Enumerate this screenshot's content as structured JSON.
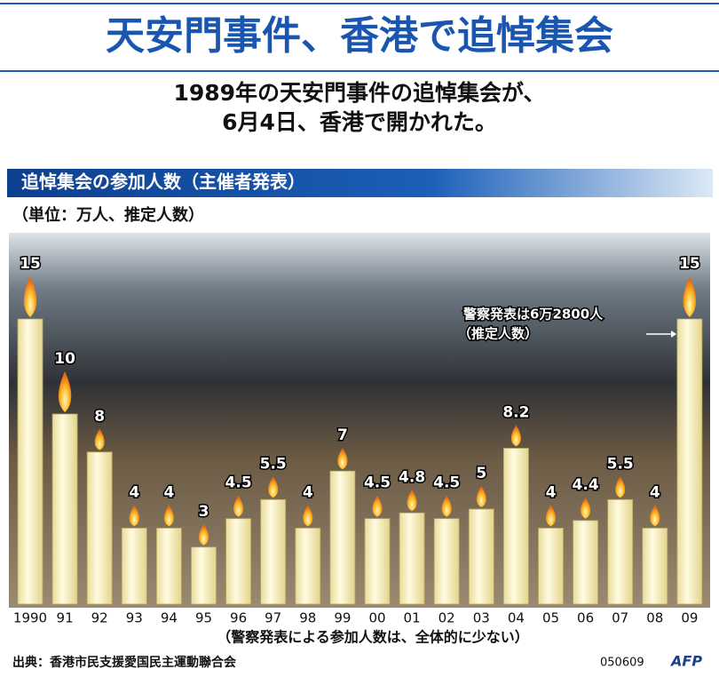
{
  "title": "天安門事件、香港で追悼集会",
  "subtitle": [
    "1989年の天安門事件の追悼集会が、",
    "6月4日、香港で開かれた。"
  ],
  "chart_data": {
    "type": "bar",
    "title": "追悼集会の参加人数（主催者発表）",
    "unit": "（単位：万人、推定人数）",
    "categories": [
      "1990",
      "91",
      "92",
      "93",
      "94",
      "95",
      "96",
      "97",
      "98",
      "99",
      "00",
      "01",
      "02",
      "03",
      "04",
      "05",
      "06",
      "07",
      "08",
      "09"
    ],
    "values": [
      15,
      10,
      8,
      4,
      4,
      3,
      4.5,
      5.5,
      4,
      7,
      4.5,
      4.8,
      4.5,
      5,
      8.2,
      4,
      4.4,
      5.5,
      4,
      15
    ],
    "color": "#fbf3c2",
    "annotation": [
      "警察発表は6万2800人",
      "（推定人数）"
    ],
    "note": "（警察発表による参加人数は、全体的に少ない）"
  },
  "source": "出典：香港市民支援愛国民主運動聯合会",
  "code": "050609",
  "logo": "AFP"
}
